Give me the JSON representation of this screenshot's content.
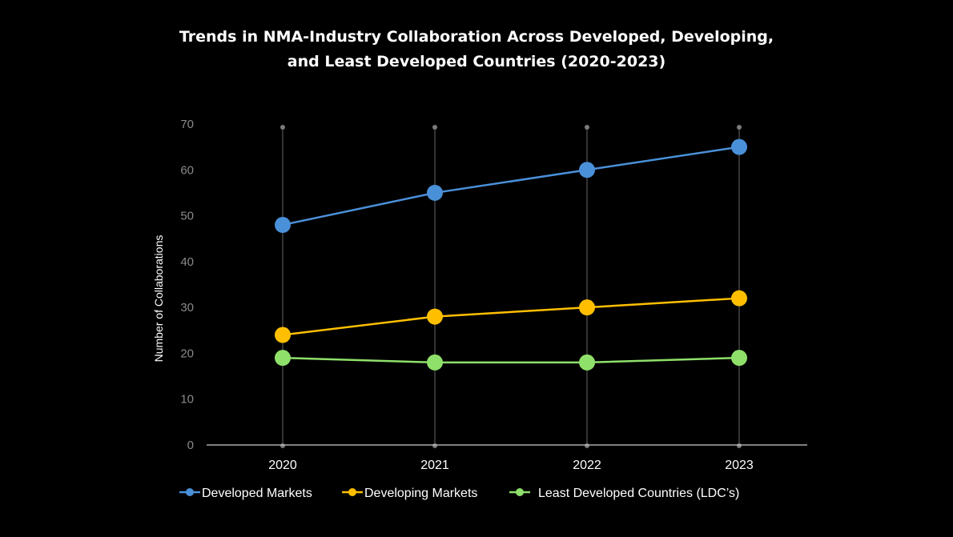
{
  "chart_data": {
    "type": "line",
    "title": [
      "Trends in NMA-Industry Collaboration Across Developed, Developing,",
      "and Least Developed Countries (2020-2023)"
    ],
    "categories": [
      "2020",
      "2021",
      "2022",
      "2023"
    ],
    "ylabel": "Number of Collaborations",
    "xlabel": "",
    "ylim": [
      0,
      70
    ],
    "yticks": [
      "0",
      "10",
      "20",
      "30",
      "40",
      "50",
      "60",
      "70"
    ],
    "legend_position": "bottom-center",
    "grid": "vertical",
    "series": [
      {
        "name": "Developed Markets",
        "values": [
          48,
          55,
          60,
          65
        ],
        "color": "#4a90d9"
      },
      {
        "name": "Developing Markets",
        "values": [
          24,
          28,
          30,
          32
        ],
        "color": "#ffbf00"
      },
      {
        "name": "Least Developed Countries (LDC’s)",
        "values": [
          19,
          18,
          18,
          19
        ],
        "color": "#8ee06a"
      }
    ],
    "colors": {
      "background": "#000000",
      "axis": "#cccccc",
      "grid": "#555555",
      "tick_text": "#8a8a8a",
      "text": "#ffffff"
    }
  }
}
